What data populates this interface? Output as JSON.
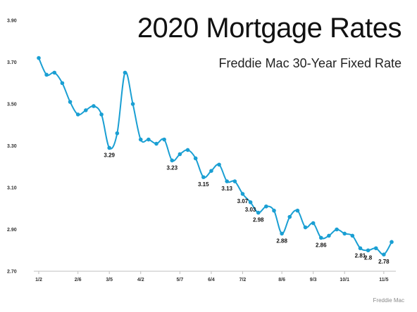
{
  "header": {
    "title": "2020 Mortgage Rates",
    "subtitle": "Freddie Mac 30-Year Fixed Rate",
    "source": "Freddie Mac"
  },
  "colors": {
    "line": "#1a9fd3",
    "axis": "#bfbfbf",
    "text": "#111111"
  },
  "chart_data": {
    "type": "line",
    "title": "2020 Mortgage Rates",
    "subtitle": "Freddie Mac 30-Year Fixed Rate",
    "ylim": [
      2.7,
      3.9
    ],
    "yticks": [
      "2.70",
      "2.90",
      "3.10",
      "3.30",
      "3.50",
      "3.70",
      "3.90"
    ],
    "xticks": [
      {
        "label": "1/2",
        "index": 0
      },
      {
        "label": "2/6",
        "index": 5
      },
      {
        "label": "3/5",
        "index": 9
      },
      {
        "label": "4/2",
        "index": 13
      },
      {
        "label": "5/7",
        "index": 18
      },
      {
        "label": "6/4",
        "index": 22
      },
      {
        "label": "7/2",
        "index": 26
      },
      {
        "label": "8/6",
        "index": 31
      },
      {
        "label": "9/3",
        "index": 35
      },
      {
        "label": "10/1",
        "index": 39
      },
      {
        "label": "11/5",
        "index": 44
      }
    ],
    "grid": false,
    "series": [
      {
        "values": [
          3.72,
          3.64,
          3.65,
          3.6,
          3.51,
          3.45,
          3.47,
          3.49,
          3.45,
          3.29,
          3.36,
          3.65,
          3.5,
          3.33,
          3.33,
          3.31,
          3.33,
          3.23,
          3.26,
          3.28,
          3.24,
          3.15,
          3.18,
          3.21,
          3.13,
          3.13,
          3.07,
          3.03,
          2.98,
          3.01,
          2.99,
          2.88,
          2.96,
          2.99,
          2.91,
          2.93,
          2.86,
          2.87,
          2.9,
          2.88,
          2.87,
          2.81,
          2.8,
          2.81,
          2.78,
          2.84
        ]
      }
    ],
    "data_labels": [
      {
        "index": 9,
        "text": "3.29"
      },
      {
        "index": 17,
        "text": "3.23"
      },
      {
        "index": 21,
        "text": "3.15"
      },
      {
        "index": 24,
        "text": "3.13"
      },
      {
        "index": 26,
        "text": "3.07"
      },
      {
        "index": 27,
        "text": "3.03"
      },
      {
        "index": 28,
        "text": "2.98"
      },
      {
        "index": 31,
        "text": "2.88"
      },
      {
        "index": 36,
        "text": "2.86"
      },
      {
        "index": 41,
        "text": "2.81"
      },
      {
        "index": 42,
        "text": "2.8"
      },
      {
        "index": 44,
        "text": "2.78"
      }
    ]
  }
}
